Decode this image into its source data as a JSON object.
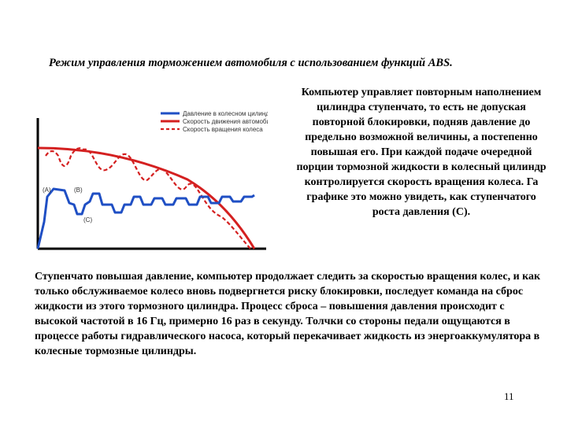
{
  "title": "Режим управления торможением автомобиля с использованием функций ABS.",
  "side_text": "Компьютер управляет повторным наполнением цилиндра ступенчато, то есть не допуская повторной блокировки, подняв давление до предельно возможной величины, а постепенно повышая его. При каждой подаче очередной порции тормозной жидкости в колесный цилиндр контролируется скорость вращения колеса. Га графике это можно увидеть, как ступенчатого роста давления (С).",
  "body_text": "Ступенчато повышая давление, компьютер продолжает следить за скоростью вращения колес, и как только обслуживаемое колесо вновь подвергнется риску блокировки, последует команда на сброс жидкости из этого тормозного цилиндра. Процесс сброса – повышения давления происходит с высокой частотой в 16 Гц, примерно 16 раз в секунду. Толчки со стороны педали ощущаются в процессе работы гидравлического насоса, который перекачивает жидкость из энергоаккумулятора в колесные тормозные цилиндры.",
  "page_number": "11",
  "figure": {
    "legend": [
      {
        "label": "Давление в колесном цилиндре",
        "color": "#1f4fc4",
        "style": "solid"
      },
      {
        "label": "Скорость движения автомобиля",
        "color": "#d42020",
        "style": "solid"
      },
      {
        "label": "Скорость вращения колеса",
        "color": "#d42020",
        "style": "dashed"
      }
    ],
    "markers": {
      "a": "(A)",
      "b": "(B)",
      "c": "(C)"
    }
  }
}
